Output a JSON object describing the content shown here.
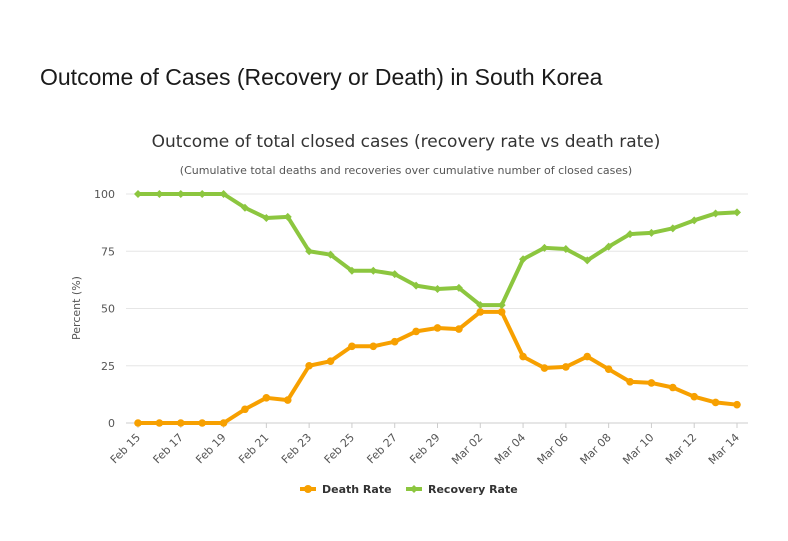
{
  "page": {
    "heading": "Outcome of Cases (Recovery or Death) in South Korea"
  },
  "chart_data": {
    "type": "line",
    "title": "Outcome of total closed cases (recovery rate vs death rate)",
    "subtitle": "(Cumulative total deaths and recoveries over cumulative number of closed cases)",
    "xlabel": "",
    "ylabel": "Percent (%)",
    "ylim": [
      0,
      100
    ],
    "yticks": [
      0,
      25,
      50,
      75,
      100
    ],
    "grid": true,
    "legend_position": "bottom-center",
    "categories": [
      "Feb 15",
      "Feb 16",
      "Feb 17",
      "Feb 18",
      "Feb 19",
      "Feb 20",
      "Feb 21",
      "Feb 22",
      "Feb 23",
      "Feb 24",
      "Feb 25",
      "Feb 26",
      "Feb 27",
      "Feb 28",
      "Feb 29",
      "Mar 01",
      "Mar 02",
      "Mar 03",
      "Mar 04",
      "Mar 05",
      "Mar 06",
      "Mar 07",
      "Mar 08",
      "Mar 09",
      "Mar 10",
      "Mar 11",
      "Mar 12",
      "Mar 13",
      "Mar 14"
    ],
    "tick_labels": [
      "Feb 15",
      "Feb 17",
      "Feb 19",
      "Feb 21",
      "Feb 23",
      "Feb 25",
      "Feb 27",
      "Feb 29",
      "Mar 02",
      "Mar 04",
      "Mar 06",
      "Mar 08",
      "Mar 10",
      "Mar 12",
      "Mar 14"
    ],
    "series": [
      {
        "name": "Death Rate",
        "color": "#f7a000",
        "values": [
          0,
          0,
          0,
          0,
          0,
          6,
          11,
          10,
          25,
          27,
          33.5,
          33.5,
          35.5,
          40,
          41.5,
          41,
          48.5,
          48.5,
          29,
          24,
          24.5,
          29,
          23.5,
          18,
          17.5,
          15.5,
          11.5,
          9,
          8
        ]
      },
      {
        "name": "Recovery Rate",
        "color": "#8cc63f",
        "values": [
          100,
          100,
          100,
          100,
          100,
          94,
          89.5,
          90,
          75,
          73.5,
          66.5,
          66.5,
          65,
          60,
          58.5,
          59,
          51.5,
          51.5,
          71.5,
          76.5,
          76,
          71,
          77,
          82.5,
          83,
          85,
          88.5,
          91.5,
          92
        ]
      }
    ]
  }
}
